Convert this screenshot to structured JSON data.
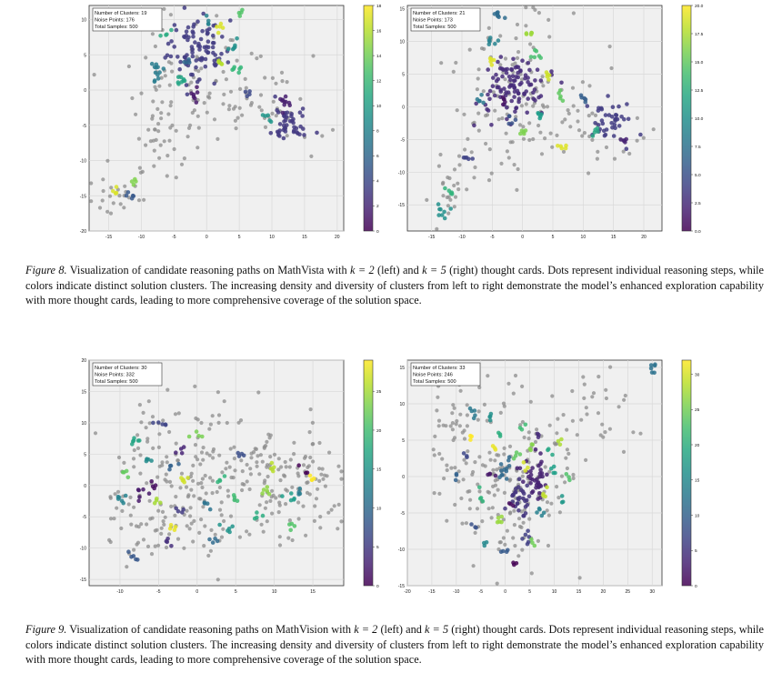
{
  "figure8": {
    "label": "Figure 8.",
    "caption_pre": "Visualization of candidate reasoning paths on MathVista with",
    "k_expr_left": "k = 2",
    "mid1": "(left) and",
    "k_expr_right": "k = 5",
    "caption_post": "(right) thought cards. Dots represent individual reasoning steps, while colors indicate distinct solution clusters. The increasing density and diversity of clusters from left to right demonstrate the model’s enhanced exploration capability with more thought cards, leading to more comprehensive coverage of the solution space."
  },
  "figure9": {
    "label": "Figure 9.",
    "caption_pre": "Visualization of candidate reasoning paths on MathVision with",
    "k_expr_left": "k = 2",
    "mid1": "(left) and",
    "k_expr_right": "k = 5",
    "caption_post": "(right) thought cards. Dots represent individual reasoning steps, while colors indicate distinct solution clusters. The increasing density and diversity of clusters from left to right demonstrate the model’s enhanced exploration capability with more thought cards, leading to more comprehensive coverage of the solution space."
  },
  "chart_data": [
    {
      "id": "f8l",
      "type": "scatter",
      "title": "",
      "info": [
        "Number of Clusters: 19",
        "Noise Points: 176",
        "Total Samples: 500"
      ],
      "xlim": [
        -18,
        21
      ],
      "ylim": [
        -20,
        12
      ],
      "xticks": [
        -15,
        -10,
        -5,
        0,
        5,
        10,
        15,
        20
      ],
      "yticks": [
        -20,
        -15,
        -10,
        -5,
        0,
        5,
        10
      ],
      "colorbar": {
        "min": 0,
        "max": 18,
        "ticks": [
          0,
          2,
          4,
          6,
          8,
          10,
          12,
          14,
          16,
          18
        ]
      },
      "seed": 11,
      "noise_points": 176,
      "noise_regions": [
        {
          "cx": -2,
          "cy": 2,
          "sx": 6,
          "sy": 4,
          "w": 4
        },
        {
          "cx": 8,
          "cy": -2,
          "sx": 5,
          "sy": 3,
          "w": 2
        },
        {
          "cx": -7,
          "cy": -6,
          "sx": 3,
          "sy": 4,
          "w": 2
        },
        {
          "cx": -14,
          "cy": -15,
          "sx": 2,
          "sy": 2,
          "w": 1
        }
      ],
      "clusters": [
        {
          "x": -1.5,
          "y": 6,
          "n": 90,
          "s": 2.2,
          "c": 3.2
        },
        {
          "x": 13,
          "y": -5,
          "n": 45,
          "s": 1.4,
          "c": 3.0
        },
        {
          "x": 12,
          "y": -2,
          "n": 10,
          "s": 0.6,
          "c": 1.5
        },
        {
          "x": -8,
          "y": 3,
          "n": 12,
          "s": 0.8,
          "c": 7.5
        },
        {
          "x": -4,
          "y": 1.5,
          "n": 8,
          "s": 0.6,
          "c": 10.5
        },
        {
          "x": -2,
          "y": -0.5,
          "n": 7,
          "s": 0.5,
          "c": 1.2
        },
        {
          "x": 4,
          "y": 6,
          "n": 6,
          "s": 0.5,
          "c": 9.0
        },
        {
          "x": 5,
          "y": 3,
          "n": 6,
          "s": 0.5,
          "c": 12.0
        },
        {
          "x": 2,
          "y": 9,
          "n": 5,
          "s": 0.4,
          "c": 17.0
        },
        {
          "x": 2,
          "y": 4,
          "n": 5,
          "s": 0.4,
          "c": 16.0
        },
        {
          "x": 9,
          "y": -4,
          "n": 5,
          "s": 0.4,
          "c": 9.5
        },
        {
          "x": -11.5,
          "y": -15,
          "n": 5,
          "s": 0.5,
          "c": 5.0
        },
        {
          "x": -14,
          "y": -14,
          "n": 4,
          "s": 0.4,
          "c": 17.0
        },
        {
          "x": -11,
          "y": -13,
          "n": 4,
          "s": 0.4,
          "c": 14.5
        },
        {
          "x": 5,
          "y": 11,
          "n": 4,
          "s": 0.4,
          "c": 13.0
        },
        {
          "x": -6,
          "y": 8,
          "n": 4,
          "s": 0.4,
          "c": 11.0
        },
        {
          "x": 0,
          "y": 10,
          "n": 4,
          "s": 0.4,
          "c": 8.0
        },
        {
          "x": -3,
          "y": 4,
          "n": 4,
          "s": 0.4,
          "c": 6.0
        },
        {
          "x": 6,
          "y": 0,
          "n": 4,
          "s": 0.4,
          "c": 4.0
        }
      ]
    },
    {
      "id": "f8r",
      "type": "scatter",
      "title": "",
      "info": [
        "Number of Clusters: 21",
        "Noise Points: 173",
        "Total Samples: 500"
      ],
      "xlim": [
        -19,
        23
      ],
      "ylim": [
        -19,
        15.5
      ],
      "xticks": [
        -15,
        -10,
        -5,
        0,
        5,
        10,
        15,
        20
      ],
      "yticks": [
        -15,
        -10,
        -5,
        0,
        5,
        10,
        15
      ],
      "colorbar": {
        "min": 0,
        "max": 20,
        "ticks": [
          0.0,
          2.5,
          5.0,
          7.5,
          10.0,
          12.5,
          15.0,
          17.5,
          20.0
        ]
      },
      "seed": 23,
      "noise_points": 173,
      "noise_regions": [
        {
          "cx": -1,
          "cy": 4,
          "sx": 5,
          "sy": 5,
          "w": 4
        },
        {
          "cx": 9,
          "cy": -4,
          "sx": 6,
          "sy": 3,
          "w": 2
        },
        {
          "cx": -6,
          "cy": -8,
          "sx": 3,
          "sy": 3,
          "w": 1
        },
        {
          "cx": -13,
          "cy": -14,
          "sx": 2,
          "sy": 2,
          "w": 1
        }
      ],
      "clusters": [
        {
          "x": -1,
          "y": 3,
          "n": 100,
          "s": 2.6,
          "c": 2.5
        },
        {
          "x": 14,
          "y": -2,
          "n": 40,
          "s": 1.6,
          "c": 3.5
        },
        {
          "x": -4,
          "y": 14,
          "n": 8,
          "s": 0.6,
          "c": 7.0
        },
        {
          "x": -5,
          "y": 10,
          "n": 6,
          "s": 0.5,
          "c": 9.0
        },
        {
          "x": -5,
          "y": 7,
          "n": 5,
          "s": 0.4,
          "c": 19.0
        },
        {
          "x": 4,
          "y": 5,
          "n": 5,
          "s": 0.4,
          "c": 18.5
        },
        {
          "x": -13,
          "y": -16,
          "n": 8,
          "s": 0.8,
          "c": 10.0
        },
        {
          "x": -12,
          "y": -13,
          "n": 5,
          "s": 0.4,
          "c": 13.0
        },
        {
          "x": 7,
          "y": -6,
          "n": 5,
          "s": 0.4,
          "c": 19.0
        },
        {
          "x": -9,
          "y": -8,
          "n": 5,
          "s": 0.4,
          "c": 4.0
        },
        {
          "x": 2,
          "y": 8,
          "n": 6,
          "s": 0.5,
          "c": 14.0
        },
        {
          "x": 3,
          "y": -1,
          "n": 5,
          "s": 0.4,
          "c": 11.0
        },
        {
          "x": 6,
          "y": 2,
          "n": 5,
          "s": 0.4,
          "c": 15.0
        },
        {
          "x": -7,
          "y": 1,
          "n": 5,
          "s": 0.4,
          "c": 8.0
        },
        {
          "x": 0,
          "y": -4,
          "n": 5,
          "s": 0.4,
          "c": 16.0
        },
        {
          "x": 12,
          "y": -4,
          "n": 5,
          "s": 0.4,
          "c": 12.0
        },
        {
          "x": 10,
          "y": 1,
          "n": 5,
          "s": 0.4,
          "c": 6.0
        },
        {
          "x": -2,
          "y": -2,
          "n": 5,
          "s": 0.4,
          "c": 5.0
        },
        {
          "x": 1,
          "y": 11,
          "n": 5,
          "s": 0.4,
          "c": 17.0
        },
        {
          "x": -3,
          "y": 1,
          "n": 5,
          "s": 0.4,
          "c": 1.0
        },
        {
          "x": 17,
          "y": -5,
          "n": 5,
          "s": 0.4,
          "c": 2.0
        }
      ]
    },
    {
      "id": "f9l",
      "type": "scatter",
      "title": "",
      "info": [
        "Number of Clusters: 30",
        "Noise Points: 332",
        "Total Samples: 500"
      ],
      "xlim": [
        -14,
        19
      ],
      "ylim": [
        -16,
        20
      ],
      "xticks": [
        -10,
        -5,
        0,
        5,
        10,
        15
      ],
      "yticks": [
        -15,
        -10,
        -5,
        0,
        5,
        10,
        15,
        20
      ],
      "colorbar": {
        "min": 0,
        "max": 29,
        "ticks": [
          0,
          5,
          10,
          15,
          20,
          25
        ]
      },
      "seed": 37,
      "noise_points": 332,
      "noise_regions": [
        {
          "cx": -3,
          "cy": 1,
          "sx": 5,
          "sy": 6,
          "w": 4
        },
        {
          "cx": 5,
          "cy": 2,
          "sx": 5,
          "sy": 5,
          "w": 2
        },
        {
          "cx": 13,
          "cy": 0,
          "sx": 3,
          "sy": 4,
          "w": 2
        },
        {
          "cx": -7,
          "cy": -7,
          "sx": 3,
          "sy": 3,
          "w": 1
        }
      ],
      "clusters": [
        {
          "x": -5,
          "y": 10,
          "n": 5,
          "s": 0.5,
          "c": 6.0
        },
        {
          "x": -8,
          "y": 7,
          "n": 6,
          "s": 0.5,
          "c": 17.0
        },
        {
          "x": -6.5,
          "y": 4,
          "n": 5,
          "s": 0.4,
          "c": 14.0
        },
        {
          "x": -2,
          "y": 6,
          "n": 4,
          "s": 0.4,
          "c": 3.0
        },
        {
          "x": -1.5,
          "y": 1,
          "n": 5,
          "s": 0.4,
          "c": 27.0
        },
        {
          "x": -10,
          "y": -2,
          "n": 6,
          "s": 0.5,
          "c": 13.0
        },
        {
          "x": -7,
          "y": -1,
          "n": 6,
          "s": 0.5,
          "c": 2.0
        },
        {
          "x": -5,
          "y": -2.5,
          "n": 4,
          "s": 0.4,
          "c": 25.0
        },
        {
          "x": -8,
          "y": -11,
          "n": 5,
          "s": 0.6,
          "c": 8.0
        },
        {
          "x": -3,
          "y": -7,
          "n": 4,
          "s": 0.4,
          "c": 28.0
        },
        {
          "x": 1,
          "y": -3,
          "n": 4,
          "s": 0.4,
          "c": 11.0
        },
        {
          "x": 4,
          "y": -7,
          "n": 5,
          "s": 0.5,
          "c": 15.0
        },
        {
          "x": 9,
          "y": -1,
          "n": 5,
          "s": 0.4,
          "c": 24.0
        },
        {
          "x": 12,
          "y": -2,
          "n": 5,
          "s": 0.4,
          "c": 16.0
        },
        {
          "x": 15,
          "y": 1,
          "n": 4,
          "s": 0.4,
          "c": 29.0
        },
        {
          "x": 13,
          "y": -1,
          "n": 4,
          "s": 0.4,
          "c": 12.0
        },
        {
          "x": 12.5,
          "y": -6.5,
          "n": 4,
          "s": 0.4,
          "c": 21.0
        },
        {
          "x": 0,
          "y": 8,
          "n": 4,
          "s": 0.4,
          "c": 23.0
        },
        {
          "x": -3,
          "y": 3,
          "n": 4,
          "s": 0.4,
          "c": 9.0
        },
        {
          "x": 3,
          "y": 1,
          "n": 4,
          "s": 0.4,
          "c": 19.0
        },
        {
          "x": 6,
          "y": 5,
          "n": 4,
          "s": 0.4,
          "c": 7.0
        },
        {
          "x": -9,
          "y": 2,
          "n": 4,
          "s": 0.4,
          "c": 22.0
        },
        {
          "x": -4,
          "y": -9,
          "n": 4,
          "s": 0.4,
          "c": 4.0
        },
        {
          "x": 8,
          "y": -5,
          "n": 4,
          "s": 0.4,
          "c": 18.0
        },
        {
          "x": 10,
          "y": 3,
          "n": 4,
          "s": 0.4,
          "c": 26.0
        },
        {
          "x": -6,
          "y": 0,
          "n": 4,
          "s": 0.4,
          "c": 1.0
        },
        {
          "x": 2,
          "y": -9,
          "n": 4,
          "s": 0.4,
          "c": 10.0
        },
        {
          "x": 5,
          "y": -2,
          "n": 4,
          "s": 0.4,
          "c": 20.0
        },
        {
          "x": -2,
          "y": -4,
          "n": 4,
          "s": 0.4,
          "c": 5.0
        },
        {
          "x": 14,
          "y": 3,
          "n": 3,
          "s": 0.4,
          "c": 0.0
        }
      ]
    },
    {
      "id": "f9r",
      "type": "scatter",
      "title": "",
      "info": [
        "Number of Clusters: 33",
        "Noise Points: 246",
        "Total Samples: 500"
      ],
      "xlim": [
        -20,
        32
      ],
      "ylim": [
        -15,
        16
      ],
      "xticks": [
        -20,
        -15,
        -10,
        -5,
        0,
        5,
        10,
        15,
        20,
        25,
        30
      ],
      "yticks": [
        -15,
        -10,
        -5,
        0,
        5,
        10,
        15
      ],
      "colorbar": {
        "min": 0,
        "max": 32,
        "ticks": [
          0,
          5,
          10,
          15,
          20,
          25,
          30
        ]
      },
      "seed": 51,
      "noise_points": 246,
      "noise_regions": [
        {
          "cx": -2,
          "cy": 2,
          "sx": 7,
          "sy": 6,
          "w": 4
        },
        {
          "cx": 4,
          "cy": -4,
          "sx": 5,
          "sy": 4,
          "w": 3
        },
        {
          "cx": -10,
          "cy": 7,
          "sx": 3,
          "sy": 3,
          "w": 1
        },
        {
          "cx": 18,
          "cy": 8,
          "sx": 4,
          "sy": 3,
          "w": 1
        }
      ],
      "clusters": [
        {
          "x": 6,
          "y": 0,
          "n": 40,
          "s": 1.4,
          "c": 3.0
        },
        {
          "x": 3,
          "y": -3,
          "n": 30,
          "s": 1.3,
          "c": 5.0
        },
        {
          "x": 0,
          "y": 1,
          "n": 12,
          "s": 0.8,
          "c": 11.0
        },
        {
          "x": 30,
          "y": 15,
          "n": 6,
          "s": 0.5,
          "c": 12.0
        },
        {
          "x": -7,
          "y": 9,
          "n": 5,
          "s": 0.5,
          "c": 13.0
        },
        {
          "x": -3,
          "y": 8,
          "n": 4,
          "s": 0.4,
          "c": 16.0
        },
        {
          "x": 4,
          "y": -8,
          "n": 6,
          "s": 0.5,
          "c": 6.0
        },
        {
          "x": -1,
          "y": -6,
          "n": 5,
          "s": 0.4,
          "c": 27.0
        },
        {
          "x": 7,
          "y": -5,
          "n": 5,
          "s": 0.4,
          "c": 14.0
        },
        {
          "x": -3,
          "y": 0,
          "n": 4,
          "s": 0.4,
          "c": 2.0
        },
        {
          "x": 2,
          "y": 3,
          "n": 4,
          "s": 0.4,
          "c": 24.0
        },
        {
          "x": 10,
          "y": 1,
          "n": 4,
          "s": 0.4,
          "c": 18.0
        },
        {
          "x": -5,
          "y": -3,
          "n": 4,
          "s": 0.4,
          "c": 21.0
        },
        {
          "x": 5,
          "y": 4,
          "n": 4,
          "s": 0.4,
          "c": 26.0
        },
        {
          "x": 0,
          "y": -10,
          "n": 4,
          "s": 0.4,
          "c": 9.0
        },
        {
          "x": 8,
          "y": -2,
          "n": 4,
          "s": 0.4,
          "c": 29.0
        },
        {
          "x": -8,
          "y": 3,
          "n": 3,
          "s": 0.4,
          "c": 7.0
        },
        {
          "x": 12,
          "y": -3,
          "n": 3,
          "s": 0.4,
          "c": 17.0
        },
        {
          "x": -2,
          "y": 4,
          "n": 3,
          "s": 0.4,
          "c": 31.0
        },
        {
          "x": 1,
          "y": -4,
          "n": 3,
          "s": 0.4,
          "c": 1.0
        },
        {
          "x": 9,
          "y": 3,
          "n": 3,
          "s": 0.4,
          "c": 19.0
        },
        {
          "x": -6,
          "y": -7,
          "n": 3,
          "s": 0.4,
          "c": 8.0
        },
        {
          "x": 3,
          "y": 7,
          "n": 3,
          "s": 0.4,
          "c": 22.0
        },
        {
          "x": 7,
          "y": 6,
          "n": 3,
          "s": 0.4,
          "c": 4.0
        },
        {
          "x": -10,
          "y": 0,
          "n": 3,
          "s": 0.4,
          "c": 10.0
        },
        {
          "x": 11,
          "y": 5,
          "n": 3,
          "s": 0.4,
          "c": 28.0
        },
        {
          "x": -4,
          "y": -9,
          "n": 3,
          "s": 0.4,
          "c": 15.0
        },
        {
          "x": 4,
          "y": 1,
          "n": 3,
          "s": 0.4,
          "c": 30.0
        },
        {
          "x": 6,
          "y": -9,
          "n": 3,
          "s": 0.4,
          "c": 25.0
        },
        {
          "x": -1,
          "y": 6,
          "n": 3,
          "s": 0.4,
          "c": 20.0
        },
        {
          "x": 13,
          "y": 0,
          "n": 3,
          "s": 0.4,
          "c": 23.0
        },
        {
          "x": 2,
          "y": -12,
          "n": 3,
          "s": 0.4,
          "c": 0.0
        },
        {
          "x": -7,
          "y": 6,
          "n": 3,
          "s": 0.4,
          "c": 32.0
        }
      ]
    }
  ]
}
